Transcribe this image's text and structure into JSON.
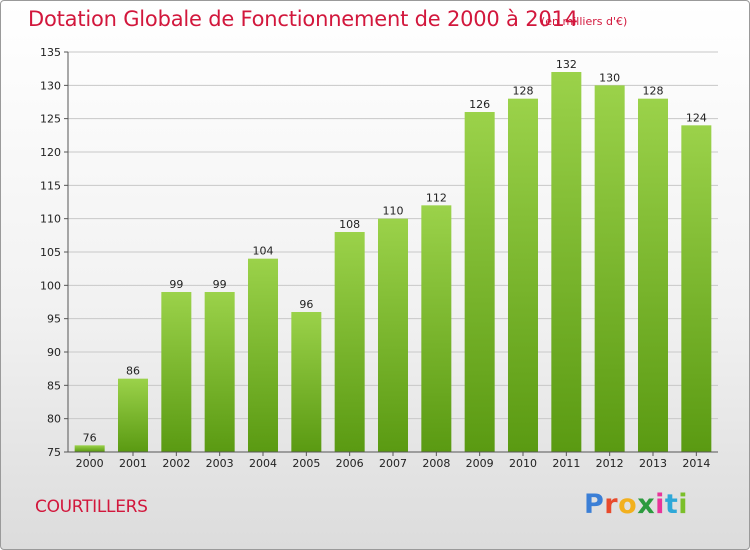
{
  "title": "Dotation Globale de Fonctionnement de 2000 à 2014",
  "subtitle": "(en milliers d'€)",
  "commune": "COURTILLERS",
  "logo": {
    "text": "Proxiti",
    "letter_colors": [
      "#3b7fd6",
      "#e84a2c",
      "#f2b01e",
      "#2c9b3f",
      "#e8349a",
      "#2fa8d8",
      "#7bbf2a"
    ]
  },
  "colors": {
    "title": "#d2173c",
    "bar_top": "#9bd24a",
    "bar_bottom": "#5a9a12",
    "grid": "#c8c8c8",
    "axis": "#555555"
  },
  "chart_data": {
    "type": "bar",
    "categories": [
      "2000",
      "2001",
      "2002",
      "2003",
      "2004",
      "2005",
      "2006",
      "2007",
      "2008",
      "2009",
      "2010",
      "2011",
      "2012",
      "2013",
      "2014"
    ],
    "values": [
      76,
      86,
      99,
      99,
      104,
      96,
      108,
      110,
      112,
      126,
      128,
      132,
      130,
      128,
      124
    ],
    "ylim": [
      75,
      135
    ],
    "yticks": [
      75,
      80,
      85,
      90,
      95,
      100,
      105,
      110,
      115,
      120,
      125,
      130,
      135
    ],
    "grid": true,
    "title": "Dotation Globale de Fonctionnement de 2000 à 2014",
    "xlabel": "",
    "ylabel": ""
  }
}
